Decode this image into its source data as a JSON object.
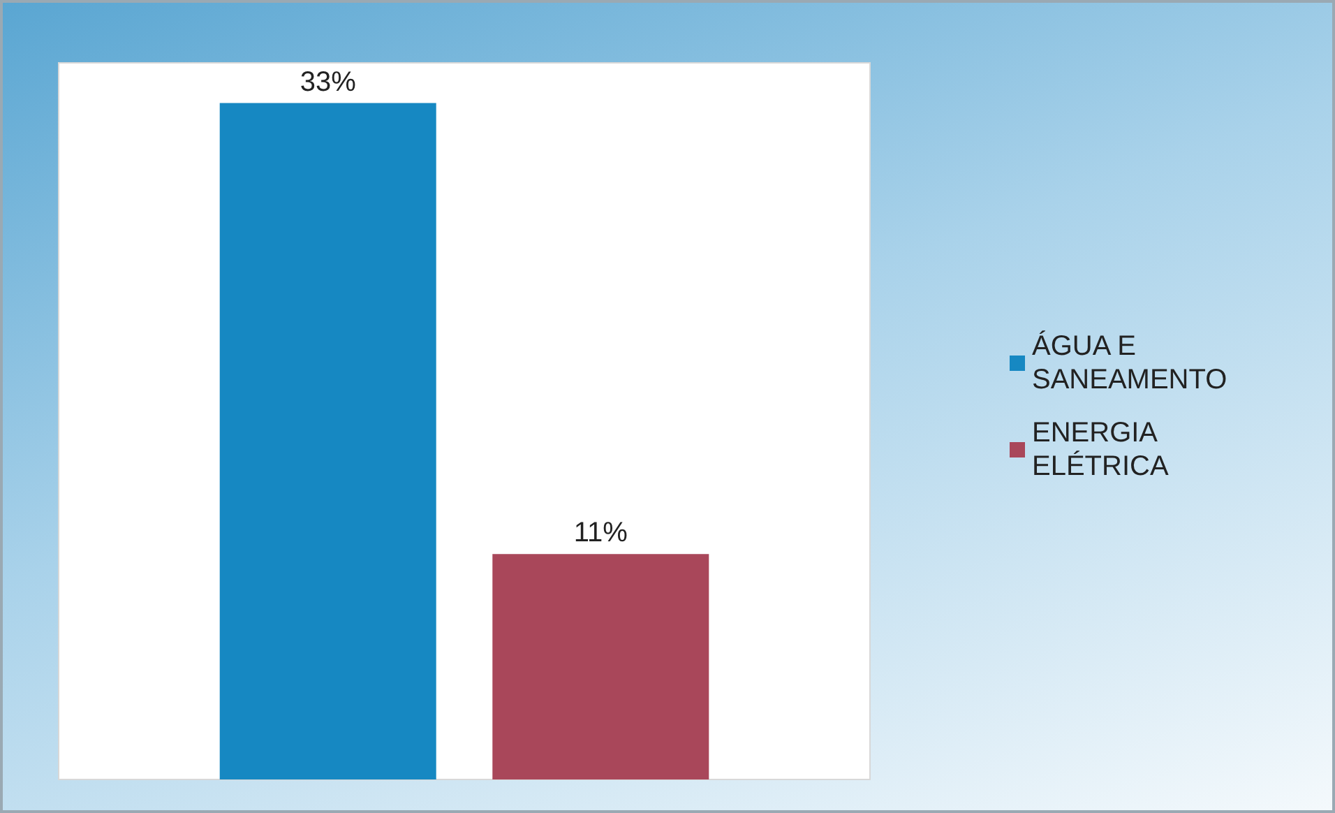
{
  "chart_data": {
    "type": "bar",
    "categories": [
      null
    ],
    "series": [
      {
        "name": "ÁGUA E SANEAMENTO",
        "color": "#1688c2",
        "values": [
          33
        ],
        "value_labels": [
          "33%"
        ]
      },
      {
        "name": "ENERGIA ELÉTRICA",
        "color": "#a9475a",
        "values": [
          11
        ],
        "value_labels": [
          "11%"
        ]
      }
    ],
    "legend": "right"
  }
}
